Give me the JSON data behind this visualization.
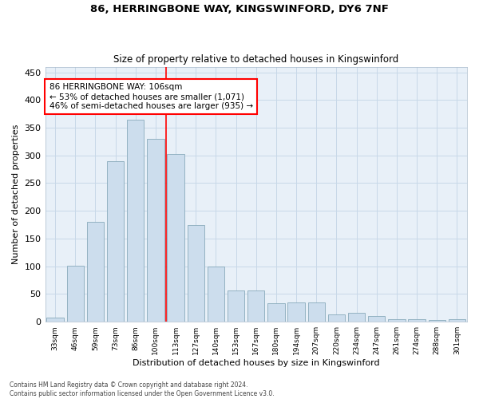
{
  "title": "86, HERRINGBONE WAY, KINGSWINFORD, DY6 7NF",
  "subtitle": "Size of property relative to detached houses in Kingswinford",
  "xlabel": "Distribution of detached houses by size in Kingswinford",
  "ylabel": "Number of detached properties",
  "categories": [
    "33sqm",
    "46sqm",
    "59sqm",
    "73sqm",
    "86sqm",
    "100sqm",
    "113sqm",
    "127sqm",
    "140sqm",
    "153sqm",
    "167sqm",
    "180sqm",
    "194sqm",
    "207sqm",
    "220sqm",
    "234sqm",
    "247sqm",
    "261sqm",
    "274sqm",
    "288sqm",
    "301sqm"
  ],
  "values": [
    8,
    101,
    180,
    290,
    365,
    330,
    303,
    175,
    100,
    57,
    57,
    33,
    35,
    35,
    13,
    16,
    10,
    5,
    5,
    3,
    4
  ],
  "bar_color": "#ccdded",
  "bar_edge_color": "#88aabb",
  "vline_x_index": 5,
  "vline_color": "red",
  "annotation_text": "86 HERRINGBONE WAY: 106sqm\n← 53% of detached houses are smaller (1,071)\n46% of semi-detached houses are larger (935) →",
  "annotation_box_color": "white",
  "annotation_box_edge": "red",
  "ylim": [
    0,
    460
  ],
  "yticks": [
    0,
    50,
    100,
    150,
    200,
    250,
    300,
    350,
    400,
    450
  ],
  "grid_color": "#c8d8e8",
  "background_color": "#e8f0f8",
  "footer": "Contains HM Land Registry data © Crown copyright and database right 2024.\nContains public sector information licensed under the Open Government Licence v3.0."
}
